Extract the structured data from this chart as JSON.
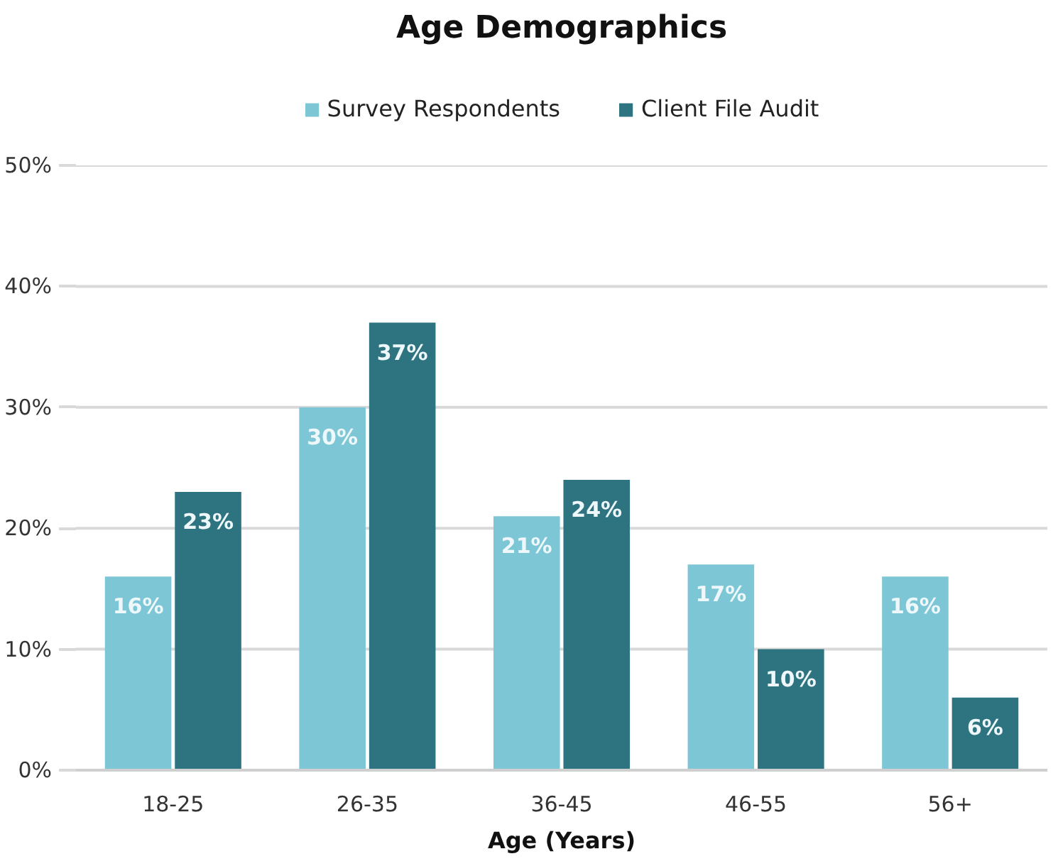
{
  "chart_data": {
    "type": "bar",
    "title": "Age Demographics",
    "xlabel": "Age (Years)",
    "categories": [
      "18-25",
      "26-35",
      "36-45",
      "46-55",
      "56+"
    ],
    "series": [
      {
        "name": "Survey Respondents",
        "color": "#7cc6d6",
        "values": [
          16,
          30,
          21,
          17,
          16
        ],
        "value_labels": [
          "16%",
          "30%",
          "21%",
          "17%",
          "16%"
        ]
      },
      {
        "name": "Client File Audit",
        "color": "#2e7380",
        "values": [
          23,
          37,
          24,
          10,
          6
        ],
        "value_labels": [
          "23%",
          "37%",
          "24%",
          "10%",
          "6%"
        ]
      }
    ],
    "ylim": [
      0,
      50
    ],
    "yticks": [
      {
        "value": 0,
        "label": "0%"
      },
      {
        "value": 10,
        "label": "10%"
      },
      {
        "value": 20,
        "label": "20%"
      },
      {
        "value": 30,
        "label": "30%"
      },
      {
        "value": 40,
        "label": "40%"
      },
      {
        "value": 50,
        "label": "50%"
      }
    ],
    "grid": "y",
    "legend": "top"
  }
}
